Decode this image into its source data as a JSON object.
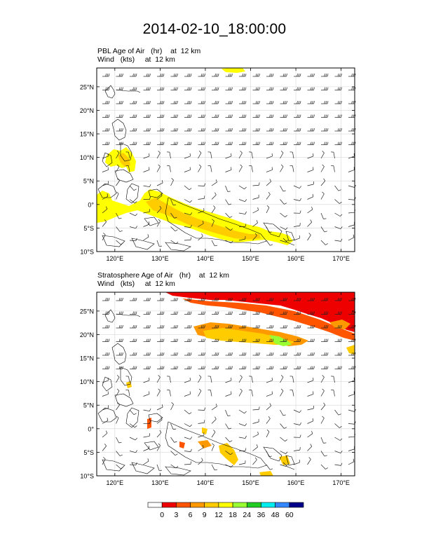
{
  "title": "2014-02-10_18:00:00",
  "panels": [
    {
      "field_name": "PBL Age of Air",
      "field_unit": "(hr)",
      "level": "at  12 km",
      "wind_name": "Wind",
      "wind_unit": "(kts)",
      "wind_level": "at  12 km"
    },
    {
      "field_name": "Stratosphere Age of Air",
      "field_unit": "(hr)",
      "level": "at  12 km",
      "wind_name": "Wind",
      "wind_unit": "(kts)",
      "wind_level": "at  12 km"
    }
  ],
  "axes": {
    "lat_labels": [
      "25°N",
      "20°N",
      "15°N",
      "10°N",
      "5°N",
      "0°",
      "5°S",
      "10°S"
    ],
    "lat_values": [
      25,
      20,
      15,
      10,
      5,
      0,
      -5,
      -10
    ],
    "lon_labels": [
      "120°E",
      "130°E",
      "140°E",
      "150°E",
      "160°E",
      "170°E"
    ],
    "lon_values": [
      120,
      130,
      140,
      150,
      160,
      170
    ],
    "lat_range": [
      -10,
      29
    ],
    "lon_range": [
      116,
      173
    ]
  },
  "colorbar": {
    "labels": [
      "0",
      "3",
      "6",
      "9",
      "12",
      "18",
      "24",
      "36",
      "48",
      "60"
    ],
    "colors": [
      "#ffffff",
      "#ee0000",
      "#ff5500",
      "#ff9900",
      "#ffcc00",
      "#ffff00",
      "#99ff33",
      "#22cc22",
      "#00eeee",
      "#3388ff",
      "#000088"
    ]
  }
}
